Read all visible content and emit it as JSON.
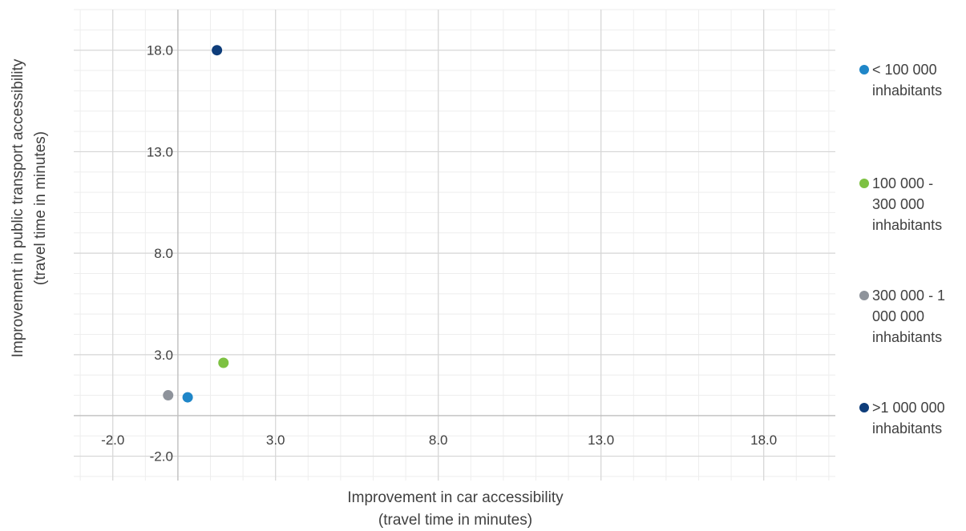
{
  "chart_data": {
    "type": "scatter",
    "title": "",
    "xlabel_lines": [
      "Improvement in car accessibility",
      "(travel time in minutes)"
    ],
    "ylabel_lines": [
      "Improvement in public transport accessibility",
      "(travel time in minutes)"
    ],
    "xlim": [
      -3.2,
      20.2
    ],
    "ylim": [
      -3.2,
      20.0
    ],
    "x_ticks": [
      -2.0,
      3.0,
      8.0,
      13.0,
      18.0
    ],
    "y_ticks": [
      -2.0,
      3.0,
      8.0,
      13.0,
      18.0
    ],
    "tick_labels_x": [
      "-2.0",
      "3.0",
      "8.0",
      "13.0",
      "18.0"
    ],
    "tick_labels_y": [
      "-2.0",
      "3.0",
      "8.0",
      "13.0",
      "18.0"
    ],
    "grid": true,
    "legend_position": "right",
    "series": [
      {
        "name": "< 100 000 inhabitants",
        "color": "#1f86c8",
        "points": [
          {
            "x": 0.3,
            "y": 0.9
          }
        ]
      },
      {
        "name": "100 000 - 300 000 inhabitants",
        "color": "#7dc142",
        "points": [
          {
            "x": 1.4,
            "y": 2.6
          }
        ]
      },
      {
        "name": "300 000 - 1 000 000 inhabitants",
        "color": "#8e939b",
        "points": [
          {
            "x": -0.3,
            "y": 1.0
          }
        ]
      },
      {
        "name": ">1 000 000 inhabitants",
        "color": "#0e3d7a",
        "points": [
          {
            "x": 1.2,
            "y": 18.0
          }
        ]
      }
    ],
    "legend_labels": [
      [
        "< 100 000",
        "inhabitants"
      ],
      [
        "100 000 -",
        "300 000",
        "inhabitants"
      ],
      [
        "300 000 - 1",
        "000 000",
        "inhabitants"
      ],
      [
        ">1 000 000",
        "inhabitants"
      ]
    ]
  }
}
